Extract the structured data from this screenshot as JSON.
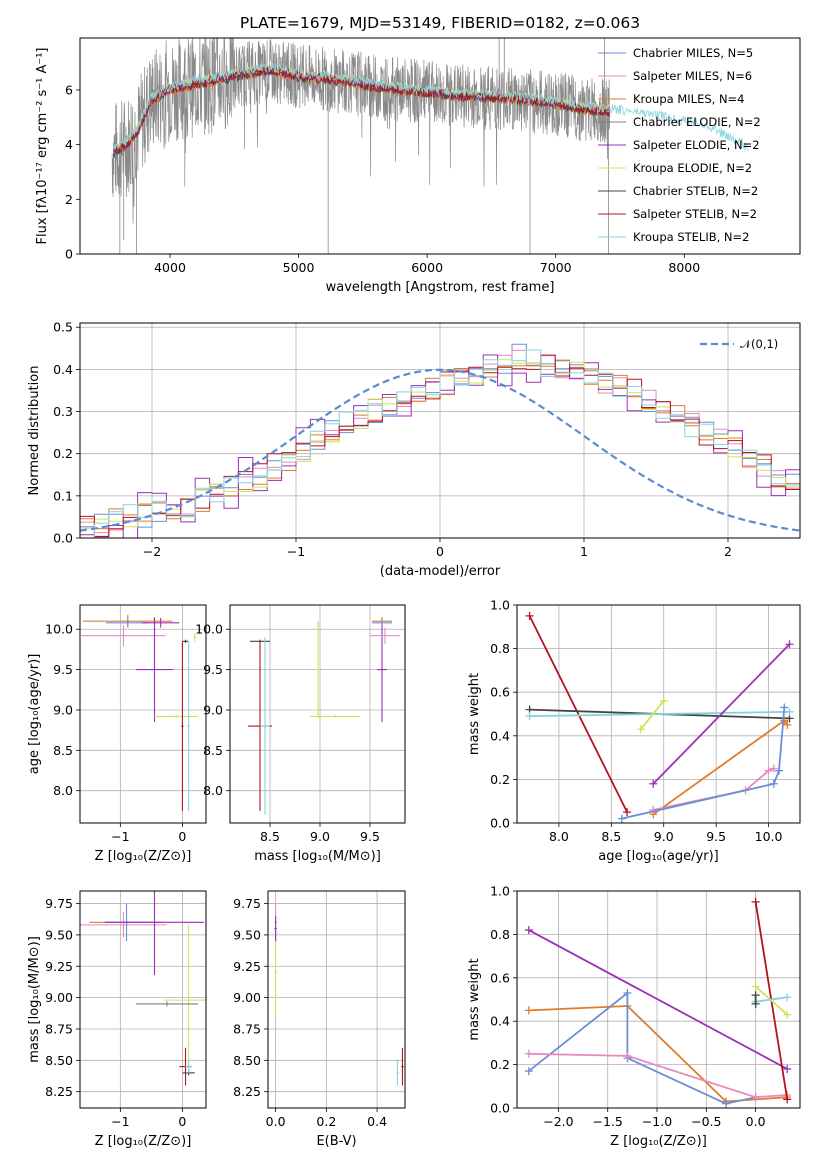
{
  "title": "PLATE=1679, MJD=53149, FIBERID=0182, z=0.063",
  "colors": {
    "Chabrier MILES": "#6a8fd6",
    "Salpeter MILES": "#e58bc0",
    "Kroupa MILES": "#e07b2a",
    "Chabrier ELODIE": "#7f7f7f",
    "Salpeter ELODIE": "#9b30b8",
    "Kroupa ELODIE": "#d4e157",
    "Chabrier STELIB": "#444444",
    "Salpeter STELIB": "#b3131f",
    "Kroupa STELIB": "#86d3e0"
  },
  "chart_data": [
    {
      "type": "line",
      "id": "spectrum",
      "title": "PLATE=1679, MJD=53149, FIBERID=0182, z=0.063",
      "xlabel": "wavelength [Angstrom, rest frame]",
      "ylabel": "Flux [fλ10⁻¹⁷ erg cm⁻² s⁻¹ A⁻¹]",
      "xlim": [
        3300,
        8900
      ],
      "ylim": [
        0,
        7.9
      ],
      "xticks": [
        "4000",
        "5000",
        "6000",
        "7000",
        "8000"
      ],
      "yticks": [
        "0",
        "2",
        "4",
        "6"
      ],
      "legend_position": "top-right",
      "series": [
        {
          "name": "Chabrier MILES, N_SSP=5"
        },
        {
          "name": "Salpeter MILES, N_SSP=6"
        },
        {
          "name": "Kroupa MILES, N_SSP=4"
        },
        {
          "name": "Chabrier ELODIE, N_SSP=2"
        },
        {
          "name": "Salpeter ELODIE, N_SSP=2"
        },
        {
          "name": "Kroupa ELODIE, N_SSP=2"
        },
        {
          "name": "Chabrier STELIB, N_SSP=2"
        },
        {
          "name": "Salpeter STELIB, N_SSP=2"
        },
        {
          "name": "Kroupa STELIB, N_SSP=2"
        }
      ],
      "continuum": {
        "x": [
          3550,
          3650,
          3750,
          3850,
          4000,
          4200,
          4400,
          4600,
          4800,
          5000,
          5200,
          5400,
          5600,
          5800,
          6000,
          6200,
          6400,
          6600,
          6800,
          7000,
          7200,
          7400,
          7600,
          7800,
          8000,
          8200,
          8400,
          8500
        ],
        "y": [
          3.7,
          3.9,
          4.5,
          5.6,
          6.0,
          6.2,
          6.4,
          6.6,
          6.7,
          6.5,
          6.4,
          6.3,
          6.1,
          6.0,
          5.9,
          5.8,
          5.75,
          5.7,
          5.6,
          5.5,
          5.3,
          5.2,
          5.1,
          4.95,
          4.75,
          4.55,
          4.0,
          3.8
        ]
      },
      "data_range": [
        3550,
        7420
      ]
    },
    {
      "type": "line",
      "id": "residual-histogram",
      "xlabel": "(data-model)/error",
      "ylabel": "Normed distribution",
      "xlim": [
        -2.5,
        2.5
      ],
      "ylim": [
        0,
        0.51
      ],
      "xticks": [
        "−2",
        "−1",
        "0",
        "1",
        "2"
      ],
      "yticks": [
        "0.0",
        "0.1",
        "0.2",
        "0.3",
        "0.4",
        "0.5"
      ],
      "legend": [
        "𝒩(0,1)"
      ],
      "legend_position": "top-right",
      "bin_edges_from": -2.5,
      "bin_width": 0.1,
      "histogram": [
        0.025,
        0.03,
        0.04,
        0.05,
        0.055,
        0.06,
        0.07,
        0.08,
        0.09,
        0.1,
        0.12,
        0.14,
        0.15,
        0.17,
        0.19,
        0.21,
        0.23,
        0.25,
        0.27,
        0.28,
        0.3,
        0.31,
        0.33,
        0.34,
        0.36,
        0.37,
        0.38,
        0.39,
        0.4,
        0.41,
        0.43,
        0.42,
        0.41,
        0.4,
        0.39,
        0.38,
        0.37,
        0.36,
        0.35,
        0.33,
        0.31,
        0.29,
        0.27,
        0.25,
        0.23,
        0.21,
        0.19,
        0.17,
        0.15,
        0.13,
        0.12,
        0.1,
        0.09,
        0.08,
        0.07,
        0.06,
        0.055,
        0.05,
        0.045,
        0.04,
        0.035
      ]
    },
    {
      "type": "scatter",
      "id": "age-vs-Z",
      "xlabel": "Z [log₁₀(Z/Z⊙)]",
      "ylabel": "age  [log₁₀(age/yr)]",
      "xlim": [
        -1.65,
        0.38
      ],
      "ylim": [
        7.6,
        10.3
      ],
      "xticks": [
        "−1",
        "0"
      ],
      "yticks": [
        "8.0",
        "8.5",
        "9.0",
        "9.5",
        "10.0"
      ],
      "points": [
        {
          "model": "Kroupa MILES",
          "x": -0.88,
          "y": 10.1,
          "xerr": 0.72,
          "yerr": 0.08
        },
        {
          "model": "Salpeter MILES",
          "x": -0.95,
          "y": 9.92,
          "xerr": 0.68,
          "yerr": 0.13
        },
        {
          "model": "Chabrier MILES",
          "x": -0.88,
          "y": 10.08,
          "xerr": 0.35,
          "yerr": 0.05
        },
        {
          "model": "Salpeter ELODIE",
          "x": -0.35,
          "y": 10.08,
          "xerr": 0.3,
          "yerr": 0.06
        },
        {
          "model": "Salpeter ELODIE",
          "x": -0.45,
          "y": 9.5,
          "xerr": 0.3,
          "yerr": 0.65
        },
        {
          "model": "Kroupa ELODIE",
          "x": 0.2,
          "y": 9.9,
          "xerr": 0.02,
          "yerr": 0.05
        },
        {
          "model": "Kroupa ELODIE",
          "x": -0.1,
          "y": 8.92,
          "xerr": 0.35,
          "yerr": 0.02
        },
        {
          "model": "Chabrier STELIB",
          "x": 0.05,
          "y": 9.85,
          "xerr": 0.05,
          "yerr": 0.02
        },
        {
          "model": "Salpeter STELIB",
          "x": 0.0,
          "y": 8.8,
          "xerr": 0.02,
          "yerr": 1.05
        },
        {
          "model": "Kroupa STELIB",
          "x": 0.1,
          "y": 8.8,
          "xerr": 0.02,
          "yerr": 1.05
        }
      ]
    },
    {
      "type": "scatter",
      "id": "age-vs-mass",
      "xlabel": "mass [log₁₀(M/M⊙)]",
      "xlim": [
        8.1,
        9.85
      ],
      "ylim": [
        7.6,
        10.3
      ],
      "xticks": [
        "8.5",
        "9.0",
        "9.5"
      ],
      "yticks": [
        "8.0",
        "8.5",
        "9.0",
        "9.5",
        "10.0"
      ],
      "points": [
        {
          "model": "Salpeter STELIB",
          "x": 8.4,
          "y": 8.8,
          "xerr": 0.12,
          "yerr": 1.05
        },
        {
          "model": "Chabrier STELIB",
          "x": 8.4,
          "y": 9.85,
          "xerr": 0.1,
          "yerr": 0.02
        },
        {
          "model": "Kroupa STELIB",
          "x": 8.45,
          "y": 8.8,
          "xerr": 0.05,
          "yerr": 1.1
        },
        {
          "model": "Kroupa ELODIE",
          "x": 9.15,
          "y": 8.92,
          "xerr": 0.25,
          "yerr": 0.02
        },
        {
          "model": "Kroupa ELODIE",
          "x": 8.98,
          "y": 9.5,
          "xerr": 0.02,
          "yerr": 0.6
        },
        {
          "model": "Salpeter ELODIE",
          "x": 9.62,
          "y": 9.5,
          "xerr": 0.05,
          "yerr": 0.65
        },
        {
          "model": "Salpeter MILES",
          "x": 9.65,
          "y": 9.92,
          "xerr": 0.15,
          "yerr": 0.1
        },
        {
          "model": "Kroupa MILES",
          "x": 9.62,
          "y": 10.1,
          "xerr": 0.1,
          "yerr": 0.05
        },
        {
          "model": "Chabrier MILES",
          "x": 9.62,
          "y": 10.08,
          "xerr": 0.1,
          "yerr": 0.04
        }
      ]
    },
    {
      "type": "line",
      "id": "mass-weight-vs-age",
      "xlabel": "age  [log₁₀(age/yr)]",
      "ylabel": "mass weight",
      "xlim": [
        7.6,
        10.3
      ],
      "ylim": [
        0,
        1.0
      ],
      "xticks": [
        "8.0",
        "8.5",
        "9.0",
        "9.5",
        "10.0"
      ],
      "yticks": [
        "0.0",
        "0.2",
        "0.4",
        "0.6",
        "0.8",
        "1.0"
      ],
      "series": [
        {
          "model": "Salpeter STELIB",
          "x": [
            7.72,
            8.65
          ],
          "y": [
            0.95,
            0.05
          ]
        },
        {
          "model": "Chabrier STELIB",
          "x": [
            7.72,
            10.2
          ],
          "y": [
            0.52,
            0.48
          ]
        },
        {
          "model": "Kroupa STELIB",
          "x": [
            7.72,
            10.2
          ],
          "y": [
            0.49,
            0.51
          ]
        },
        {
          "model": "Kroupa ELODIE",
          "x": [
            8.78,
            9.0
          ],
          "y": [
            0.43,
            0.56
          ]
        },
        {
          "model": "Salpeter ELODIE",
          "x": [
            8.9,
            10.2
          ],
          "y": [
            0.18,
            0.82
          ]
        },
        {
          "model": "Kroupa MILES",
          "x": [
            8.9,
            10.15,
            10.18
          ],
          "y": [
            0.04,
            0.47,
            0.45
          ]
        },
        {
          "model": "Salpeter MILES",
          "x": [
            8.9,
            9.78,
            10.0,
            10.05
          ],
          "y": [
            0.06,
            0.15,
            0.24,
            0.25
          ]
        },
        {
          "model": "Chabrier MILES",
          "x": [
            8.6,
            10.05,
            10.1,
            10.15
          ],
          "y": [
            0.02,
            0.18,
            0.24,
            0.53
          ]
        }
      ]
    },
    {
      "type": "scatter",
      "id": "mass-vs-Z",
      "xlabel": "Z [log₁₀(Z/Z⊙)]",
      "ylabel": "mass [log₁₀(M/M⊙)]",
      "xlim": [
        -1.65,
        0.38
      ],
      "ylim": [
        8.12,
        9.85
      ],
      "xticks": [
        "−1",
        "0"
      ],
      "yticks": [
        "8.25",
        "8.50",
        "8.75",
        "9.00",
        "9.25",
        "9.50",
        "9.75"
      ],
      "points": [
        {
          "model": "Kroupa MILES",
          "x": -0.9,
          "y": 9.6,
          "xerr": 0.6,
          "yerr": 0.02
        },
        {
          "model": "Salpeter MILES",
          "x": -0.95,
          "y": 9.58,
          "xerr": 0.7,
          "yerr": 0.1
        },
        {
          "model": "Chabrier MILES",
          "x": -0.9,
          "y": 9.6,
          "xerr": 0.35,
          "yerr": 0.15
        },
        {
          "model": "Salpeter ELODIE",
          "x": -0.45,
          "y": 9.6,
          "xerr": 0.8,
          "yerr": 0.42
        },
        {
          "model": "Kroupa ELODIE",
          "x": 0.1,
          "y": 8.98,
          "xerr": 0.4,
          "yerr": 0.6
        },
        {
          "model": "Chabrier ELODIE",
          "x": -0.25,
          "y": 8.95,
          "xerr": 0.5,
          "yerr": 0.02
        },
        {
          "model": "Salpeter STELIB",
          "x": 0.05,
          "y": 8.45,
          "xerr": 0.1,
          "yerr": 0.15
        },
        {
          "model": "Chabrier STELIB",
          "x": 0.1,
          "y": 8.4,
          "xerr": 0.1,
          "yerr": 0.02
        },
        {
          "model": "Kroupa STELIB",
          "x": 0.1,
          "y": 8.45,
          "xerr": 0.05,
          "yerr": 0.05
        }
      ]
    },
    {
      "type": "scatter",
      "id": "mass-vs-EBV",
      "xlabel": "E(B-V)",
      "xlim": [
        -0.03,
        0.51
      ],
      "ylim": [
        8.12,
        9.85
      ],
      "xticks": [
        "0.0",
        "0.2",
        "0.4"
      ],
      "yticks": [
        "8.25",
        "8.50",
        "8.75",
        "9.00",
        "9.25",
        "9.50",
        "9.75"
      ],
      "points": [
        {
          "model": "Salpeter MILES",
          "x": 0.0,
          "y": 9.6,
          "xerr": 0.005,
          "yerr": 0.15
        },
        {
          "model": "Kroupa ELODIE",
          "x": 0.0,
          "y": 9.2,
          "xerr": 0.005,
          "yerr": 0.35
        },
        {
          "model": "Salpeter ELODIE",
          "x": 0.0,
          "y": 9.55,
          "xerr": 0.005,
          "yerr": 0.1
        },
        {
          "model": "Kroupa STELIB",
          "x": 0.48,
          "y": 8.4,
          "xerr": 0.005,
          "yerr": 0.1
        },
        {
          "model": "Salpeter STELIB",
          "x": 0.5,
          "y": 8.45,
          "xerr": 0.005,
          "yerr": 0.15
        }
      ]
    },
    {
      "type": "line",
      "id": "mass-weight-vs-Z",
      "xlabel": "Z [log₁₀(Z/Z⊙)]",
      "ylabel": "mass weight",
      "xlim": [
        -2.42,
        0.45
      ],
      "ylim": [
        0,
        1.0
      ],
      "xticks": [
        "−2.0",
        "−1.5",
        "−1.0",
        "−0.5",
        "0.0"
      ],
      "yticks": [
        "0.0",
        "0.2",
        "0.4",
        "0.6",
        "0.8",
        "1.0"
      ],
      "series": [
        {
          "model": "Salpeter ELODIE",
          "x": [
            -2.3,
            0.32
          ],
          "y": [
            0.82,
            0.18
          ]
        },
        {
          "model": "Kroupa MILES",
          "x": [
            -2.3,
            -1.3,
            -0.3,
            0.32
          ],
          "y": [
            0.45,
            0.47,
            0.03,
            0.05
          ]
        },
        {
          "model": "Chabrier MILES",
          "x": [
            -2.3,
            -1.3,
            -1.3,
            -0.3,
            0.0
          ],
          "y": [
            0.17,
            0.53,
            0.23,
            0.02,
            0.05
          ]
        },
        {
          "model": "Salpeter MILES",
          "x": [
            -2.3,
            -1.3,
            0.0,
            0.32
          ],
          "y": [
            0.25,
            0.24,
            0.05,
            0.06
          ]
        },
        {
          "model": "Salpeter STELIB",
          "x": [
            0.0,
            0.32
          ],
          "y": [
            0.95,
            0.04
          ]
        },
        {
          "model": "Kroupa ELODIE",
          "x": [
            0.0,
            0.32
          ],
          "y": [
            0.56,
            0.43
          ]
        },
        {
          "model": "Kroupa STELIB",
          "x": [
            0.0,
            0.32
          ],
          "y": [
            0.49,
            0.51
          ]
        },
        {
          "model": "Chabrier STELIB",
          "x": [
            0.0,
            0.0
          ],
          "y": [
            0.52,
            0.48
          ]
        }
      ]
    }
  ]
}
